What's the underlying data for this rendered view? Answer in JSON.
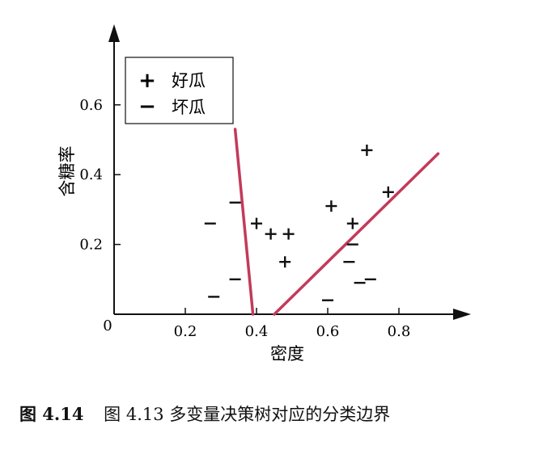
{
  "chart_data": {
    "type": "scatter",
    "xlabel": "密度",
    "ylabel": "含糖率",
    "x_ticks": [
      "0.2",
      "0.4",
      "0.6",
      "0.8"
    ],
    "y_ticks": [
      "0.2",
      "0.4",
      "0.6"
    ],
    "origin_label": "0",
    "xlim": [
      0,
      1.0
    ],
    "ylim": [
      0,
      0.8
    ],
    "legend_position": "top-left",
    "series": [
      {
        "name": "好瓜",
        "marker": "+",
        "x": [
          0.4,
          0.44,
          0.49,
          0.48,
          0.61,
          0.67,
          0.71,
          0.77
        ],
        "y": [
          0.26,
          0.23,
          0.23,
          0.15,
          0.31,
          0.26,
          0.47,
          0.35
        ]
      },
      {
        "name": "坏瓜",
        "marker": "−",
        "x": [
          0.27,
          0.34,
          0.28,
          0.34,
          0.6,
          0.66,
          0.67,
          0.69,
          0.72
        ],
        "y": [
          0.26,
          0.32,
          0.05,
          0.1,
          0.04,
          0.15,
          0.2,
          0.09,
          0.1
        ]
      }
    ],
    "boundary_lines": [
      {
        "x1": 0.34,
        "y1": 0.53,
        "x2": 0.39,
        "y2": 0.0
      },
      {
        "x1": 0.45,
        "y1": 0.0,
        "x2": 0.91,
        "y2": 0.46
      }
    ],
    "colors": {
      "boundary": "#c33a5a",
      "axis": "#111111"
    }
  },
  "caption": {
    "figure_number": "图 4.14",
    "text": "图 4.13 多变量决策树对应的分类边界"
  }
}
